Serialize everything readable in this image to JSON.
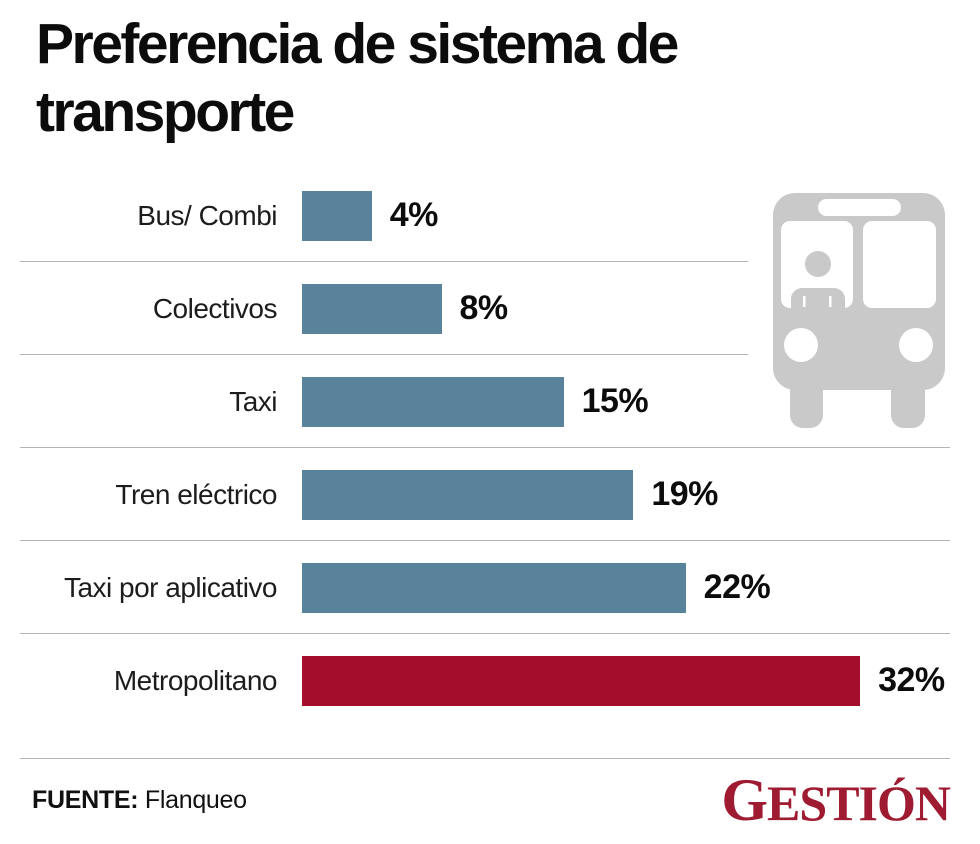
{
  "title": {
    "line1": "Preferencia de sistema de",
    "line2": "transporte"
  },
  "chart_data": {
    "type": "bar",
    "orientation": "horizontal",
    "title": "Preferencia de sistema de transporte",
    "categories": [
      "Bus/ Combi",
      "Colectivos",
      "Taxi",
      "Tren eléctrico",
      "Taxi por aplicativo",
      "Metropolitano"
    ],
    "values": [
      4,
      8,
      15,
      19,
      22,
      32
    ],
    "value_labels": [
      "4%",
      "8%",
      "15%",
      "19%",
      "22%",
      "32%"
    ],
    "unit": "%",
    "bar_colors": [
      "#59829b",
      "#59829b",
      "#59829b",
      "#59829b",
      "#59829b",
      "#a50d2d"
    ],
    "highlight_index": 5,
    "xlim": [
      0,
      34
    ],
    "grid": false,
    "legend": false
  },
  "colors": {
    "bar_default": "#59829b",
    "bar_highlight": "#a50d2d",
    "brand_red": "#9e1b32",
    "icon_gray": "#c9c9c9",
    "separator": "#b4b4b4",
    "text": "#0c0c0c"
  },
  "icons": {
    "bus_icon": "bus-front-with-driver"
  },
  "footer": {
    "source_label": "FUENTE:",
    "source_value": "Flanqueo",
    "brand": "GESTIÓN"
  }
}
